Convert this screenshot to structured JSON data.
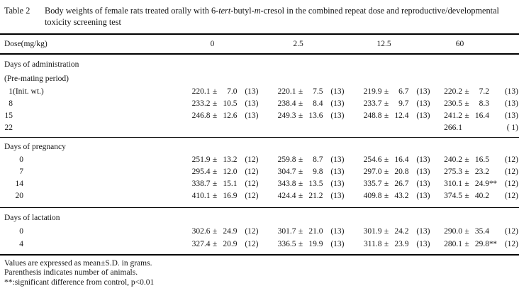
{
  "title": {
    "label": "Table 2",
    "segments": [
      {
        "text": "Body weights of female rats treated orally with 6-",
        "italic": false
      },
      {
        "text": "tert",
        "italic": true
      },
      {
        "text": "-butyl-",
        "italic": false
      },
      {
        "text": "m",
        "italic": true
      },
      {
        "text": "-cresol in the combined repeat dose and reproductive/developmental toxicity screening test",
        "italic": false
      }
    ]
  },
  "table": {
    "dose_label": "Dose(mg/kg)",
    "doses": [
      "0",
      "2.5",
      "12.5",
      "60"
    ],
    "pm_symbol": "±",
    "unit_note": "grams",
    "sections": [
      {
        "headings": [
          "Days of administration",
          "(Pre-mating period)"
        ],
        "rows": [
          {
            "day": "1(Init. wt.)",
            "cells": [
              {
                "m": "220.1",
                "s": "7.0",
                "n": "13"
              },
              {
                "m": "220.1",
                "s": "7.5",
                "n": "13"
              },
              {
                "m": "219.9",
                "s": "6.7",
                "n": "13"
              },
              {
                "m": "220.2",
                "s": "7.2",
                "n": "13"
              }
            ]
          },
          {
            "day": "8",
            "cells": [
              {
                "m": "233.2",
                "s": "10.5",
                "n": "13"
              },
              {
                "m": "238.4",
                "s": "8.4",
                "n": "13"
              },
              {
                "m": "233.7",
                "s": "9.7",
                "n": "13"
              },
              {
                "m": "230.5",
                "s": "8.3",
                "n": "13"
              }
            ]
          },
          {
            "day": "15",
            "cells": [
              {
                "m": "246.8",
                "s": "12.6",
                "n": "13"
              },
              {
                "m": "249.3",
                "s": "13.6",
                "n": "13"
              },
              {
                "m": "248.8",
                "s": "12.4",
                "n": "13"
              },
              {
                "m": "241.2",
                "s": "16.4",
                "n": "13"
              }
            ]
          },
          {
            "day": "22",
            "cells": [
              null,
              null,
              null,
              {
                "m": "266.1",
                "s": null,
                "n": " 1"
              }
            ]
          }
        ]
      },
      {
        "headings": [
          "Days of pregnancy"
        ],
        "rows": [
          {
            "day": "0",
            "cells": [
              {
                "m": "251.9",
                "s": "13.2",
                "n": "12"
              },
              {
                "m": "259.8",
                "s": "8.7",
                "n": "13"
              },
              {
                "m": "254.6",
                "s": "16.4",
                "n": "13"
              },
              {
                "m": "240.2",
                "s": "16.5",
                "n": "12"
              }
            ]
          },
          {
            "day": "7",
            "cells": [
              {
                "m": "295.4",
                "s": "12.0",
                "n": "12"
              },
              {
                "m": "304.7",
                "s": "9.8",
                "n": "13"
              },
              {
                "m": "297.0",
                "s": "20.8",
                "n": "13"
              },
              {
                "m": "275.3",
                "s": "23.2",
                "n": "12"
              }
            ]
          },
          {
            "day": "14",
            "cells": [
              {
                "m": "338.7",
                "s": "15.1",
                "n": "12"
              },
              {
                "m": "343.8",
                "s": "13.5",
                "n": "13"
              },
              {
                "m": "335.7",
                "s": "26.7",
                "n": "13"
              },
              {
                "m": "310.1",
                "s": "24.9",
                "f": "**",
                "n": "12"
              }
            ]
          },
          {
            "day": "20",
            "cells": [
              {
                "m": "410.1",
                "s": "16.9",
                "n": "12"
              },
              {
                "m": "424.4",
                "s": "21.2",
                "n": "13"
              },
              {
                "m": "409.8",
                "s": "43.2",
                "n": "13"
              },
              {
                "m": "374.5",
                "s": "40.2",
                "n": "12"
              }
            ]
          }
        ]
      },
      {
        "headings": [
          "Days of lactation"
        ],
        "rows": [
          {
            "day": "0",
            "cells": [
              {
                "m": "302.6",
                "s": "24.9",
                "n": "12"
              },
              {
                "m": "301.7",
                "s": "21.0",
                "n": "13"
              },
              {
                "m": "301.9",
                "s": "24.2",
                "n": "13"
              },
              {
                "m": "290.0",
                "s": "35.4",
                "n": "12"
              }
            ]
          },
          {
            "day": "4",
            "cells": [
              {
                "m": "327.4",
                "s": "20.9",
                "n": "12"
              },
              {
                "m": "336.5",
                "s": "19.9",
                "n": "13"
              },
              {
                "m": "311.8",
                "s": "23.9",
                "n": "13"
              },
              {
                "m": "280.1",
                "s": "29.8",
                "f": "**",
                "n": "12"
              }
            ]
          }
        ]
      }
    ]
  },
  "footnotes": [
    "Values are expressed as mean±S.D. in grams.",
    "Parenthesis indicates number of animals.",
    "**:significant difference from control, p<0.01"
  ]
}
